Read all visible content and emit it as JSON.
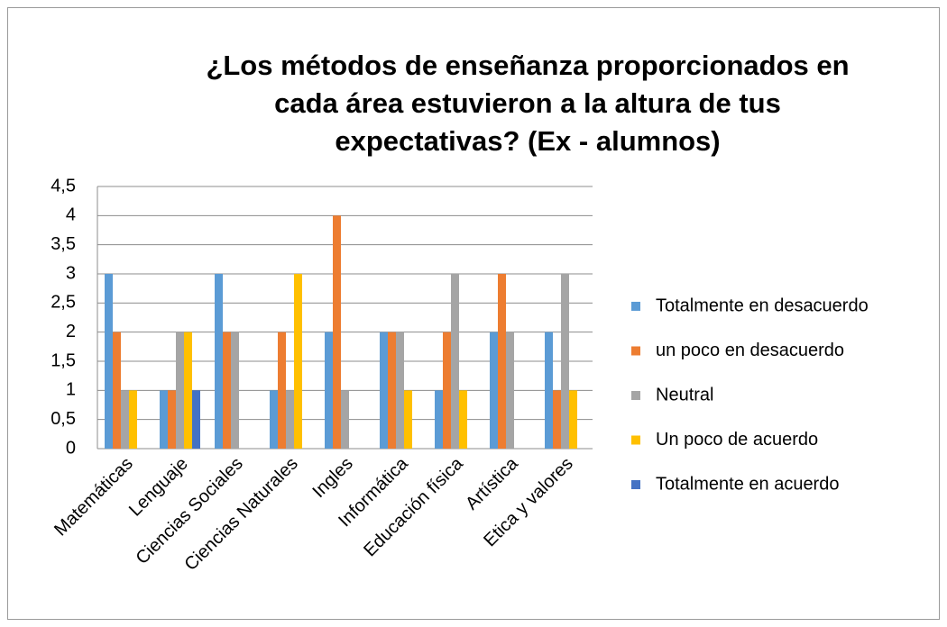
{
  "chart_data": {
    "type": "bar",
    "title": [
      "¿Los métodos de enseñanza proporcionados en",
      "cada área estuvieron a la altura de tus",
      "expectativas? (Ex - alumnos)"
    ],
    "categories": [
      "Matemáticas",
      "Lenguaje",
      "Ciencias Sociales",
      "Ciencias Naturales",
      "Ingles",
      "Informática",
      "Educación física",
      "Artística",
      "Etica y valores"
    ],
    "series": [
      {
        "name": "Totalmente en desacuerdo",
        "color": "#5b9bd5",
        "values": [
          3,
          1,
          3,
          1,
          2,
          2,
          1,
          2,
          2
        ]
      },
      {
        "name": "un poco en desacuerdo",
        "color": "#ed7d31",
        "values": [
          2,
          1,
          2,
          2,
          4,
          2,
          2,
          3,
          1
        ]
      },
      {
        "name": "Neutral",
        "color": "#a5a5a5",
        "values": [
          1,
          2,
          2,
          1,
          1,
          2,
          3,
          2,
          3
        ]
      },
      {
        "name": "Un poco de acuerdo",
        "color": "#ffc000",
        "values": [
          1,
          2,
          null,
          3,
          null,
          1,
          1,
          null,
          1
        ]
      },
      {
        "name": "Totalmente en acuerdo",
        "color": "#4472c4",
        "values": [
          null,
          1,
          null,
          null,
          null,
          null,
          null,
          null,
          null
        ]
      }
    ],
    "ylim": [
      0,
      4.5
    ],
    "yticks": [
      0,
      {
        "value": 0.5,
        "label": "0,5"
      },
      1,
      {
        "value": 1.5,
        "label": "1,5"
      },
      2,
      {
        "value": 2.5,
        "label": "2,5"
      },
      3,
      {
        "value": 3.5,
        "label": "3,5"
      },
      4,
      {
        "value": 4.5,
        "label": "4,5"
      }
    ],
    "grid": true,
    "legend": "right"
  }
}
